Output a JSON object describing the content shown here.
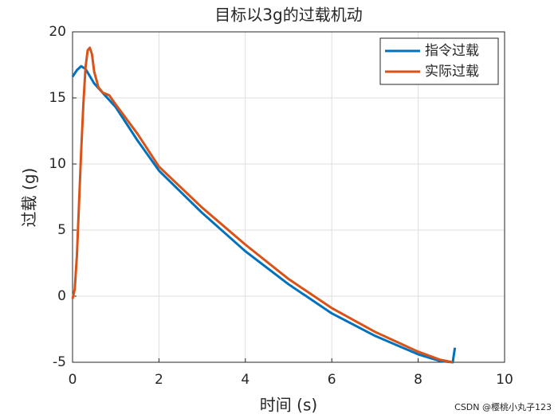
{
  "chart_data": {
    "type": "line",
    "title": "目标以3g的过载机动",
    "xlabel": "时间 (s)",
    "ylabel": "过载 (g)",
    "xlim": [
      0,
      10
    ],
    "xticks": [
      0,
      2,
      4,
      6,
      8,
      10
    ],
    "ylim": [
      -5,
      20
    ],
    "yticks": [
      -5,
      0,
      5,
      10,
      15,
      20
    ],
    "grid": true,
    "legend": "northeast",
    "series": [
      {
        "name": "指令过载",
        "color": "#0072BD",
        "x": [
          0,
          0.1,
          0.2,
          0.3,
          0.5,
          0.75,
          1,
          1.5,
          2,
          3,
          4,
          5,
          6,
          7,
          8,
          8.5,
          8.8,
          8.85
        ],
        "values": [
          16.6,
          17.1,
          17.4,
          17.2,
          16.1,
          15.2,
          14.3,
          11.8,
          9.5,
          6.3,
          3.4,
          0.9,
          -1.3,
          -3.0,
          -4.4,
          -4.9,
          -5.0,
          -3.9
        ]
      },
      {
        "name": "实际过载",
        "color": "#D95319",
        "x": [
          0,
          0.05,
          0.1,
          0.15,
          0.2,
          0.25,
          0.3,
          0.35,
          0.4,
          0.45,
          0.5,
          0.6,
          0.7,
          0.85,
          1,
          1.5,
          2,
          3,
          4,
          5,
          6,
          7,
          8,
          8.5,
          8.8
        ],
        "values": [
          -0.2,
          0.5,
          3,
          7,
          11,
          14.5,
          17.3,
          18.6,
          18.8,
          18.3,
          17,
          15.8,
          15.4,
          15.2,
          14.5,
          12.3,
          9.8,
          6.7,
          3.9,
          1.3,
          -0.9,
          -2.7,
          -4.2,
          -4.8,
          -5.0
        ]
      }
    ]
  },
  "watermark": "CSDN @樱桃小丸子123"
}
